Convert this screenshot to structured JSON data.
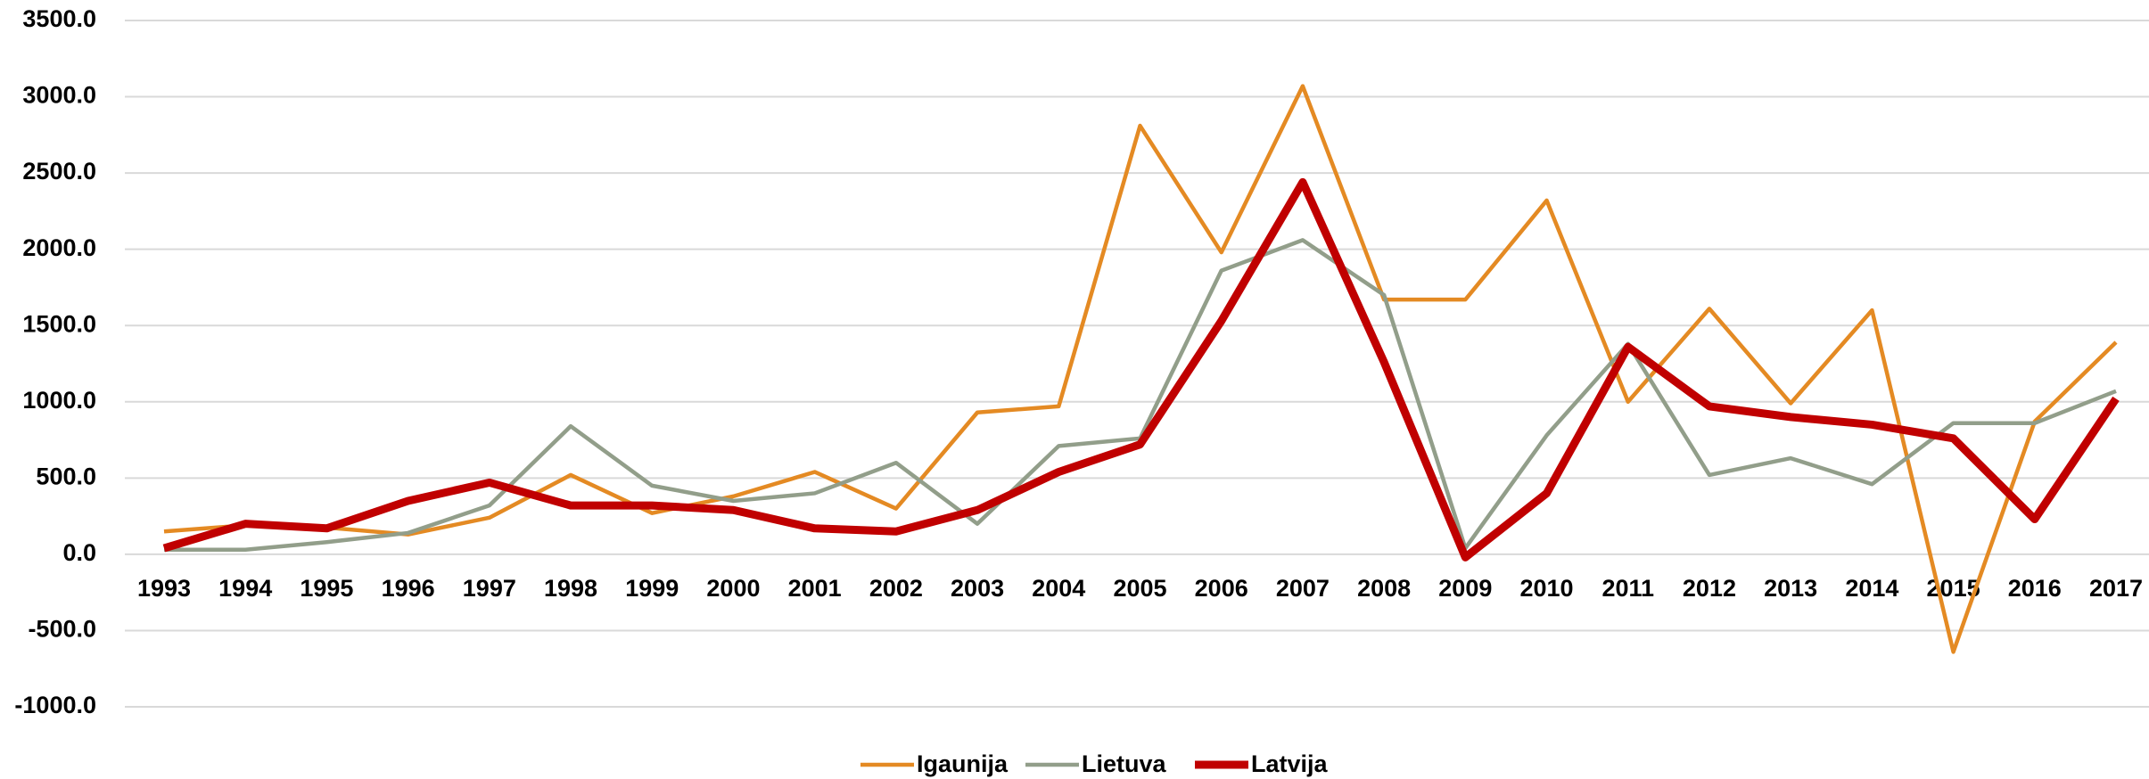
{
  "chart_data": {
    "type": "line",
    "categories": [
      "1993",
      "1994",
      "1995",
      "1996",
      "1997",
      "1998",
      "1999",
      "2000",
      "2001",
      "2002",
      "2003",
      "2004",
      "2005",
      "2006",
      "2007",
      "2008",
      "2009",
      "2010",
      "2011",
      "2012",
      "2013",
      "2014",
      "2015",
      "2016",
      "2017"
    ],
    "series": [
      {
        "name": "Igaunija",
        "color": "#e48a23",
        "values": [
          150,
          190,
          175,
          130,
          240,
          520,
          270,
          380,
          540,
          300,
          930,
          970,
          2810,
          1980,
          3070,
          1670,
          1670,
          2320,
          1000,
          1610,
          990,
          1600,
          -640,
          870,
          1390
        ]
      },
      {
        "name": "Lietuva",
        "color": "#929e8a",
        "values": [
          30,
          30,
          80,
          140,
          320,
          840,
          450,
          350,
          400,
          600,
          200,
          710,
          760,
          1860,
          2060,
          1700,
          40,
          780,
          1380,
          520,
          630,
          460,
          860,
          860,
          1070
        ]
      },
      {
        "name": "Latvija",
        "color": "#c00000",
        "values": [
          40,
          200,
          170,
          350,
          470,
          320,
          320,
          290,
          170,
          150,
          290,
          540,
          720,
          1530,
          2440,
          1260,
          -20,
          400,
          1360,
          970,
          900,
          850,
          760,
          230,
          1020
        ]
      }
    ],
    "ylim": [
      -1000,
      3500
    ],
    "yticks": [
      {
        "value": -1000,
        "label": "-1000.0"
      },
      {
        "value": -500,
        "label": "-500.0"
      },
      {
        "value": 0,
        "label": "0.0"
      },
      {
        "value": 500,
        "label": "500.0"
      },
      {
        "value": 1000,
        "label": "1000.0"
      },
      {
        "value": 1500,
        "label": "1500.0"
      },
      {
        "value": 2000,
        "label": "2000.0"
      },
      {
        "value": 2500,
        "label": "2500.0"
      },
      {
        "value": 3000,
        "label": "3000.0"
      },
      {
        "value": 3500,
        "label": "3500.0"
      }
    ],
    "grid": true,
    "legend": "bottom"
  }
}
